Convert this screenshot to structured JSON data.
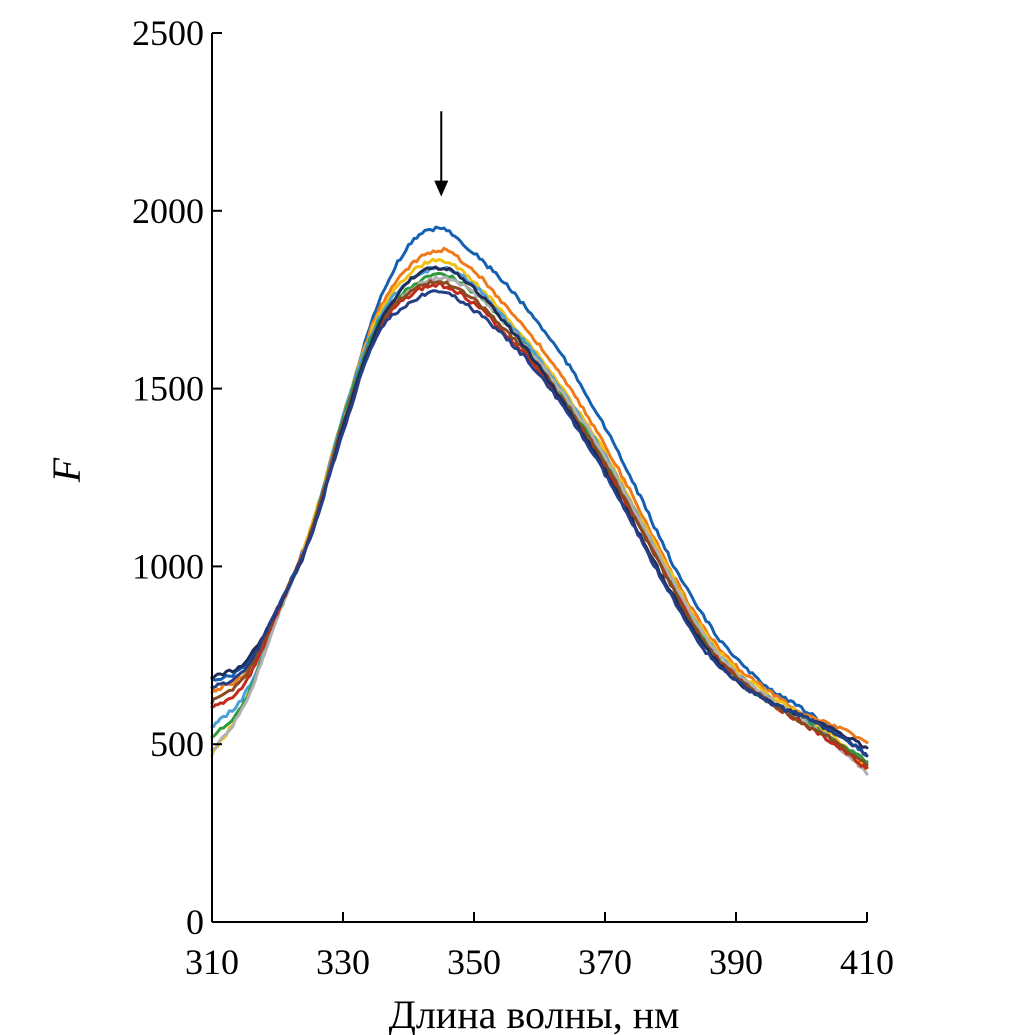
{
  "chart_data": {
    "type": "line",
    "title": "",
    "xlabel": "Длина волны, нм",
    "ylabel": "F",
    "xlim": [
      310,
      410
    ],
    "ylim": [
      0,
      2500
    ],
    "x_ticks": [
      310,
      330,
      350,
      370,
      390,
      410
    ],
    "y_ticks": [
      0,
      500,
      1000,
      1500,
      2000,
      2500
    ],
    "x_tick_labels": [
      "310",
      "330",
      "350",
      "370",
      "390",
      "410"
    ],
    "y_tick_labels": [
      "0",
      "500",
      "1000",
      "1500",
      "2000",
      "2500"
    ],
    "grid": false,
    "legend": "none",
    "annotations": [
      {
        "type": "arrow",
        "x": 345,
        "y_from": 2280,
        "y_to": 2040,
        "direction": "down"
      }
    ],
    "x": [
      310,
      315,
      320,
      325,
      330,
      335,
      340,
      345,
      350,
      355,
      360,
      365,
      370,
      375,
      380,
      385,
      390,
      395,
      400,
      405,
      410
    ],
    "series": [
      {
        "color": "#1560b0",
        "values": [
          680,
          720,
          880,
          1100,
          1410,
          1720,
          1900,
          1950,
          1880,
          1790,
          1680,
          1550,
          1390,
          1210,
          1020,
          860,
          740,
          660,
          600,
          540,
          470
        ]
      },
      {
        "color": "#f07a1a",
        "values": [
          650,
          700,
          870,
          1100,
          1420,
          1700,
          1840,
          1890,
          1830,
          1730,
          1620,
          1490,
          1340,
          1170,
          990,
          830,
          720,
          650,
          590,
          550,
          510
        ]
      },
      {
        "color": "#f2c10f",
        "values": [
          470,
          620,
          860,
          1100,
          1420,
          1690,
          1820,
          1860,
          1800,
          1700,
          1590,
          1460,
          1320,
          1150,
          980,
          820,
          710,
          640,
          580,
          520,
          430
        ]
      },
      {
        "color": "#4aa0d8",
        "values": [
          550,
          640,
          860,
          1090,
          1420,
          1680,
          1800,
          1840,
          1790,
          1690,
          1580,
          1450,
          1310,
          1140,
          970,
          810,
          700,
          630,
          570,
          510,
          450
        ]
      },
      {
        "color": "#2e9a3a",
        "values": [
          520,
          620,
          860,
          1090,
          1410,
          1670,
          1780,
          1820,
          1770,
          1680,
          1570,
          1440,
          1300,
          1130,
          960,
          800,
          690,
          620,
          570,
          510,
          450
        ]
      },
      {
        "color": "#b0b0b0",
        "values": [
          480,
          610,
          860,
          1090,
          1400,
          1660,
          1770,
          1810,
          1770,
          1680,
          1570,
          1450,
          1310,
          1140,
          970,
          810,
          700,
          630,
          570,
          500,
          420
        ]
      },
      {
        "color": "#c42a1a",
        "values": [
          600,
          670,
          870,
          1090,
          1400,
          1650,
          1760,
          1790,
          1740,
          1650,
          1550,
          1420,
          1280,
          1120,
          950,
          790,
          690,
          620,
          560,
          500,
          430
        ]
      },
      {
        "color": "#8a4a20",
        "values": [
          620,
          690,
          880,
          1090,
          1400,
          1660,
          1770,
          1800,
          1750,
          1660,
          1560,
          1430,
          1290,
          1120,
          950,
          790,
          690,
          620,
          560,
          510,
          440
        ]
      },
      {
        "color": "#1f2e5a",
        "values": [
          690,
          730,
          880,
          1080,
          1390,
          1660,
          1800,
          1840,
          1780,
          1680,
          1560,
          1420,
          1270,
          1100,
          930,
          780,
          680,
          620,
          580,
          540,
          490
        ]
      },
      {
        "color": "#243f86",
        "values": [
          660,
          710,
          880,
          1080,
          1380,
          1640,
          1740,
          1770,
          1720,
          1640,
          1540,
          1410,
          1260,
          1090,
          920,
          770,
          680,
          620,
          580,
          530,
          470
        ]
      }
    ]
  }
}
